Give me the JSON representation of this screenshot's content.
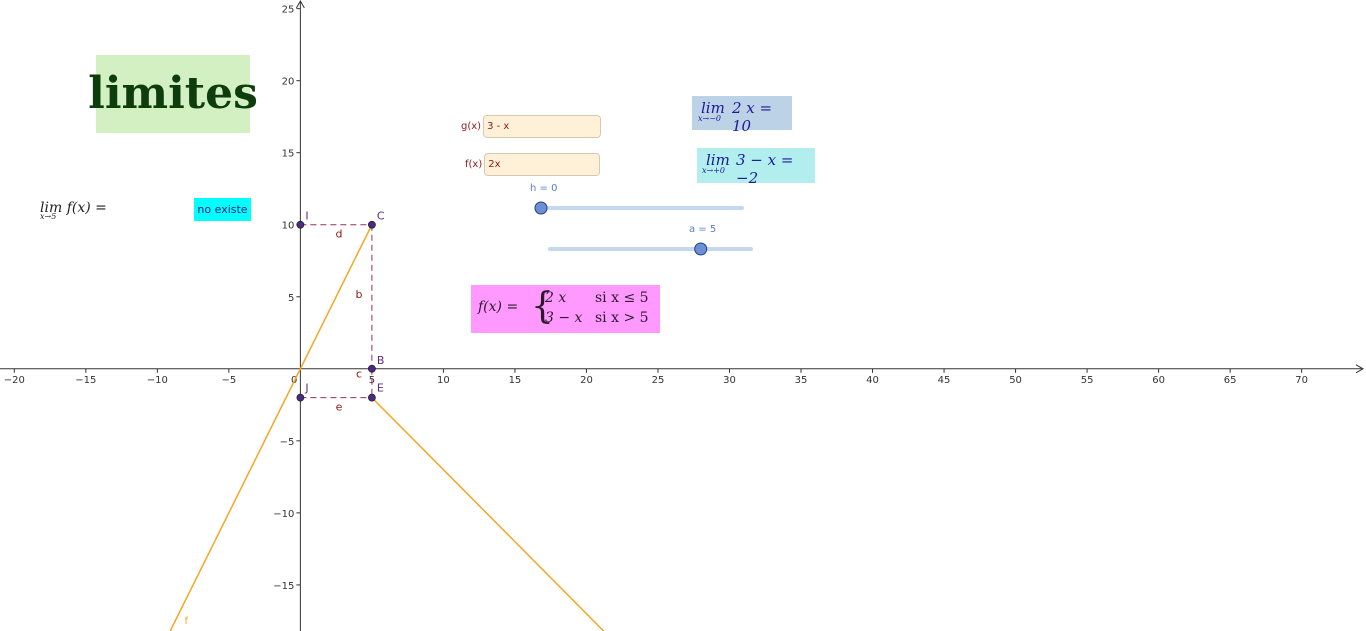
{
  "title": "limites",
  "limit_expression": {
    "lim": "lim",
    "sub": "x→5",
    "func": "f(x) ="
  },
  "limit_result": "no existe",
  "inputs": {
    "g": {
      "label": "g(x)",
      "value": "3 - x"
    },
    "f": {
      "label": "f(x)",
      "value": "2x"
    }
  },
  "left_limit": {
    "lim": "lim",
    "expr": "2 x = 10",
    "sub": "x→−0"
  },
  "right_limit": {
    "lim": "lim",
    "expr": "3 − x = −2",
    "sub": "x→+0"
  },
  "piecewise": {
    "lhs": "f(x) =",
    "row1_expr": "2 x",
    "row1_cond": "si x ≤ 5",
    "row2_expr": "3 − x",
    "row2_cond": "si x > 5"
  },
  "sliders": {
    "h": {
      "label": "h = 0",
      "value": 0
    },
    "a": {
      "label": "a = 5",
      "value": 5
    }
  },
  "points": [
    {
      "name": "I",
      "x": 0,
      "y": 10
    },
    {
      "name": "C",
      "x": 5,
      "y": 10
    },
    {
      "name": "J",
      "x": 0,
      "y": -2
    },
    {
      "name": "E",
      "x": 5,
      "y": -2
    },
    {
      "name": "B",
      "x": 5,
      "y": 0
    }
  ],
  "segment_labels": {
    "d": "d",
    "b": "b",
    "c": "c",
    "e": "e"
  },
  "curve_label": "f",
  "axes": {
    "x_range": [
      -21,
      74.5
    ],
    "y_range": [
      -18.2,
      25.6
    ],
    "x_ticks": [
      -20,
      -15,
      -10,
      -5,
      0,
      5,
      10,
      15,
      20,
      25,
      30,
      35,
      40,
      45,
      50,
      55,
      60,
      65,
      70
    ],
    "y_ticks": [
      -15,
      -10,
      -5,
      5,
      10,
      15,
      20,
      25
    ]
  },
  "colors": {
    "curve": "#f5a623",
    "dashed": "#9b2d55",
    "point": "#4b2a86",
    "slider_track": "#c6d7f0",
    "slider_knob": "#6c8fd6"
  }
}
